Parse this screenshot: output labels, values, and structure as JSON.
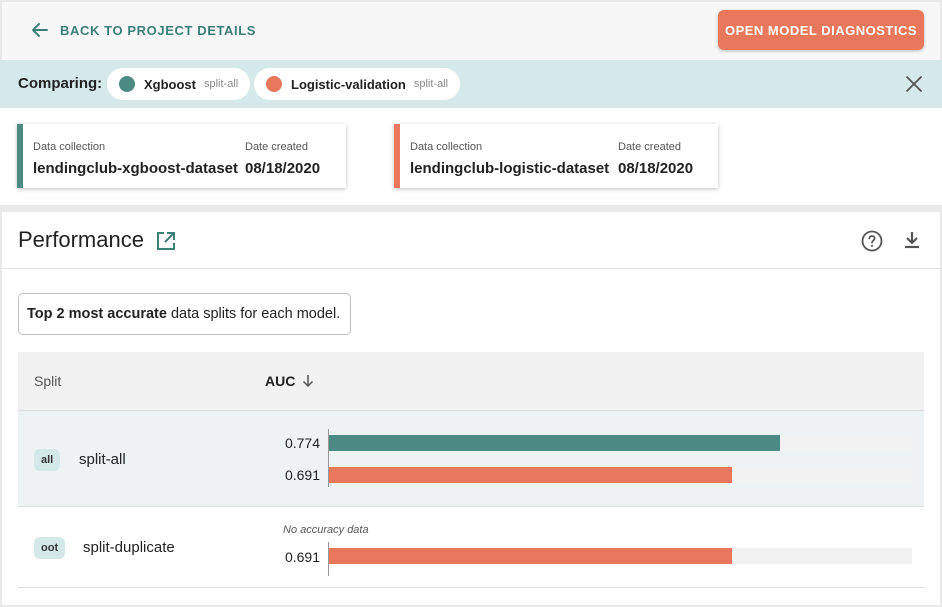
{
  "header": {
    "back_label": "BACK TO PROJECT DETAILS",
    "open_diagnostics_label": "OPEN MODEL DIAGNOSTICS"
  },
  "comparing": {
    "label": "Comparing:",
    "models": [
      {
        "name": "Xgboost",
        "split": "split-all",
        "color": "#4d8a83"
      },
      {
        "name": "Logistic-validation",
        "split": "split-all",
        "color": "#e8775b"
      }
    ]
  },
  "datasets": [
    {
      "collection_label": "Data collection",
      "collection": "lendingclub-xgboost-dataset",
      "date_label": "Date created",
      "date": "08/18/2020",
      "color": "#4d8a83"
    },
    {
      "collection_label": "Data collection",
      "collection": "lendingclub-logistic-dataset",
      "date_label": "Date created",
      "date": "08/18/2020",
      "color": "#e8775b"
    }
  ],
  "performance": {
    "title": "Performance",
    "info_bold": "Top 2 most accurate",
    "info_rest": " data splits for each model.",
    "columns": {
      "split": "Split",
      "auc": "AUC"
    },
    "rows": [
      {
        "badge": "all",
        "split": "split-all",
        "no_data_text": null,
        "values": [
          {
            "label": "0.774",
            "value": 0.774,
            "color": "#4d8a83"
          },
          {
            "label": "0.691",
            "value": 0.691,
            "color": "#e8775b"
          }
        ]
      },
      {
        "badge": "oot",
        "split": "split-duplicate",
        "no_data_text": "No accuracy data",
        "values": [
          {
            "label": "0.691",
            "value": 0.691,
            "color": "#e8775b"
          }
        ]
      }
    ]
  },
  "icons": [
    "arrow-left-icon",
    "close-icon",
    "external-link-icon",
    "help-icon",
    "download-icon",
    "arrow-down-icon"
  ]
}
